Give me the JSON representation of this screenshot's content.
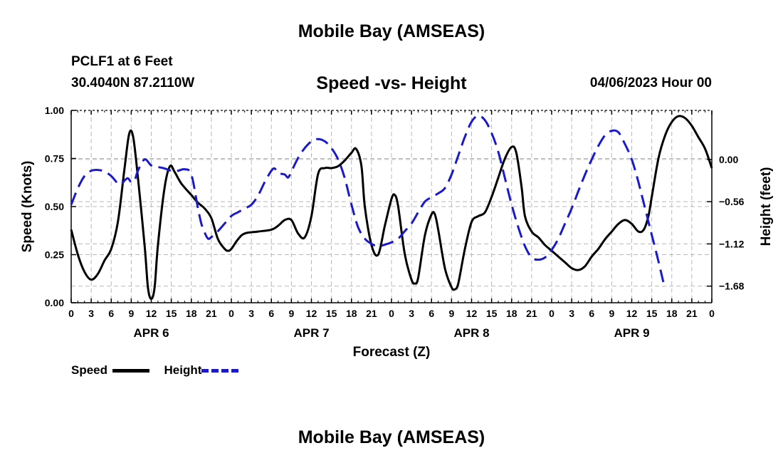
{
  "page": {
    "title": "Mobile Bay (AMSEAS)",
    "station": "PCLF1 at 6 Feet",
    "coords": "30.4040N  87.2110W",
    "datetime": "04/06/2023 Hour 00",
    "next_title": "Mobile Bay (AMSEAS)"
  },
  "chart_data": {
    "type": "line",
    "title": "Speed -vs- Height",
    "xlabel": "Forecast (Z)",
    "ylabel_left": "Speed (Knots)",
    "ylabel_right": "Height (feet)",
    "x_unit": "forecast hour",
    "xlim": [
      0,
      96
    ],
    "x_ticks": [
      0,
      3,
      6,
      9,
      12,
      15,
      18,
      21,
      24,
      27,
      30,
      33,
      36,
      39,
      42,
      45,
      48,
      51,
      54,
      57,
      60,
      63,
      66,
      69,
      72,
      75,
      78,
      81,
      84,
      87,
      90,
      93,
      96
    ],
    "x_tick_labels": [
      "0",
      "3",
      "6",
      "9",
      "12",
      "15",
      "18",
      "21",
      "0",
      "3",
      "6",
      "9",
      "12",
      "15",
      "18",
      "21",
      "0",
      "3",
      "6",
      "9",
      "12",
      "15",
      "18",
      "21",
      "0",
      "3",
      "6",
      "9",
      "12",
      "15",
      "18",
      "21",
      "0"
    ],
    "day_labels": [
      {
        "label": "APR 6",
        "hour": 12
      },
      {
        "label": "APR 7",
        "hour": 36
      },
      {
        "label": "APR 8",
        "hour": 60
      },
      {
        "label": "APR 9",
        "hour": 84
      }
    ],
    "y_left": {
      "lim": [
        0,
        1
      ],
      "ticks": [
        0,
        0.25,
        0.5,
        0.75,
        1.0
      ],
      "tick_labels": [
        "0.00",
        "0.25",
        "0.50",
        "0.75",
        "1.00"
      ]
    },
    "y_right": {
      "lim": [
        -1.9,
        0.65
      ],
      "ticks": [
        0.0,
        -0.56,
        -1.12,
        -1.68
      ],
      "tick_labels": [
        "0.00",
        "−0.56",
        "−1.12",
        "−1.68"
      ]
    },
    "grid": true,
    "legend_position": "bottom-left",
    "series": [
      {
        "name": "Speed",
        "axis": "left",
        "color": "#000000",
        "style": "solid",
        "points": [
          [
            0,
            0.38
          ],
          [
            1,
            0.25
          ],
          [
            2,
            0.16
          ],
          [
            3,
            0.12
          ],
          [
            4,
            0.15
          ],
          [
            5,
            0.22
          ],
          [
            6,
            0.28
          ],
          [
            7,
            0.42
          ],
          [
            8,
            0.7
          ],
          [
            8.7,
            0.88
          ],
          [
            9.3,
            0.86
          ],
          [
            10,
            0.65
          ],
          [
            11,
            0.3
          ],
          [
            11.5,
            0.08
          ],
          [
            12,
            0.02
          ],
          [
            12.5,
            0.08
          ],
          [
            13,
            0.3
          ],
          [
            14,
            0.6
          ],
          [
            14.8,
            0.71
          ],
          [
            15.5,
            0.68
          ],
          [
            16.5,
            0.62
          ],
          [
            18,
            0.56
          ],
          [
            19,
            0.52
          ],
          [
            20,
            0.49
          ],
          [
            21,
            0.44
          ],
          [
            22,
            0.33
          ],
          [
            23,
            0.28
          ],
          [
            23.5,
            0.27
          ],
          [
            24,
            0.28
          ],
          [
            25,
            0.33
          ],
          [
            26,
            0.36
          ],
          [
            28,
            0.37
          ],
          [
            30,
            0.38
          ],
          [
            31,
            0.4
          ],
          [
            32,
            0.43
          ],
          [
            33,
            0.43
          ],
          [
            34,
            0.36
          ],
          [
            35,
            0.34
          ],
          [
            36,
            0.45
          ],
          [
            37,
            0.67
          ],
          [
            38,
            0.7
          ],
          [
            39,
            0.7
          ],
          [
            40,
            0.71
          ],
          [
            41,
            0.74
          ],
          [
            42,
            0.78
          ],
          [
            42.7,
            0.8
          ],
          [
            43.5,
            0.71
          ],
          [
            44,
            0.5
          ],
          [
            45,
            0.3
          ],
          [
            46,
            0.25
          ],
          [
            47,
            0.4
          ],
          [
            48,
            0.54
          ],
          [
            48.5,
            0.56
          ],
          [
            49,
            0.5
          ],
          [
            50,
            0.25
          ],
          [
            51,
            0.12
          ],
          [
            51.5,
            0.1
          ],
          [
            52,
            0.13
          ],
          [
            53,
            0.35
          ],
          [
            54,
            0.46
          ],
          [
            54.5,
            0.46
          ],
          [
            55,
            0.38
          ],
          [
            56,
            0.18
          ],
          [
            57,
            0.08
          ],
          [
            57.5,
            0.07
          ],
          [
            58,
            0.1
          ],
          [
            59,
            0.28
          ],
          [
            60,
            0.42
          ],
          [
            61,
            0.45
          ],
          [
            62,
            0.47
          ],
          [
            63,
            0.55
          ],
          [
            64,
            0.65
          ],
          [
            65,
            0.75
          ],
          [
            66,
            0.81
          ],
          [
            66.7,
            0.78
          ],
          [
            67.5,
            0.6
          ],
          [
            68,
            0.45
          ],
          [
            69,
            0.37
          ],
          [
            70,
            0.34
          ],
          [
            71,
            0.3
          ],
          [
            72,
            0.27
          ],
          [
            73,
            0.24
          ],
          [
            74,
            0.21
          ],
          [
            75,
            0.18
          ],
          [
            76,
            0.17
          ],
          [
            77,
            0.19
          ],
          [
            78,
            0.24
          ],
          [
            79,
            0.28
          ],
          [
            80,
            0.33
          ],
          [
            81,
            0.37
          ],
          [
            82,
            0.41
          ],
          [
            83,
            0.43
          ],
          [
            84,
            0.41
          ],
          [
            85,
            0.37
          ],
          [
            85.8,
            0.38
          ],
          [
            86.5,
            0.45
          ],
          [
            87,
            0.55
          ],
          [
            88,
            0.75
          ],
          [
            89,
            0.87
          ],
          [
            90,
            0.94
          ],
          [
            91,
            0.97
          ],
          [
            92,
            0.96
          ],
          [
            93,
            0.92
          ],
          [
            94,
            0.86
          ],
          [
            95,
            0.8
          ],
          [
            96,
            0.7
          ]
        ]
      },
      {
        "name": "Height",
        "axis": "right",
        "color": "#1a1acc",
        "style": "dashed",
        "points": [
          [
            0,
            -0.6
          ],
          [
            1,
            -0.38
          ],
          [
            2,
            -0.22
          ],
          [
            3,
            -0.15
          ],
          [
            4,
            -0.14
          ],
          [
            5,
            -0.16
          ],
          [
            6,
            -0.22
          ],
          [
            7,
            -0.32
          ],
          [
            7.5,
            -0.33
          ],
          [
            8,
            -0.28
          ],
          [
            8.5,
            -0.25
          ],
          [
            9,
            -0.3
          ],
          [
            9.5,
            -0.28
          ],
          [
            10,
            -0.15
          ],
          [
            11,
            0.0
          ],
          [
            12,
            -0.08
          ],
          [
            13,
            -0.1
          ],
          [
            14,
            -0.12
          ],
          [
            15,
            -0.15
          ],
          [
            16,
            -0.15
          ],
          [
            17,
            -0.13
          ],
          [
            18,
            -0.2
          ],
          [
            19,
            -0.65
          ],
          [
            19.5,
            -0.85
          ],
          [
            20,
            -0.97
          ],
          [
            20.5,
            -1.05
          ],
          [
            21,
            -1.03
          ],
          [
            22,
            -0.95
          ],
          [
            23,
            -0.85
          ],
          [
            24,
            -0.75
          ],
          [
            25,
            -0.7
          ],
          [
            26,
            -0.65
          ],
          [
            27,
            -0.6
          ],
          [
            28,
            -0.48
          ],
          [
            29,
            -0.3
          ],
          [
            30,
            -0.15
          ],
          [
            30.5,
            -0.12
          ],
          [
            31,
            -0.18
          ],
          [
            32,
            -0.2
          ],
          [
            32.5,
            -0.24
          ],
          [
            33,
            -0.16
          ],
          [
            34,
            0.02
          ],
          [
            35,
            0.15
          ],
          [
            36,
            0.24
          ],
          [
            37,
            0.27
          ],
          [
            38,
            0.24
          ],
          [
            39,
            0.15
          ],
          [
            40,
            0.0
          ],
          [
            41,
            -0.25
          ],
          [
            42,
            -0.6
          ],
          [
            43,
            -0.9
          ],
          [
            44,
            -1.05
          ],
          [
            45,
            -1.12
          ],
          [
            46,
            -1.15
          ],
          [
            47,
            -1.13
          ],
          [
            48,
            -1.1
          ],
          [
            49,
            -1.05
          ],
          [
            50,
            -0.95
          ],
          [
            51,
            -0.85
          ],
          [
            52,
            -0.7
          ],
          [
            53,
            -0.56
          ],
          [
            54,
            -0.5
          ],
          [
            55,
            -0.45
          ],
          [
            56,
            -0.38
          ],
          [
            57,
            -0.2
          ],
          [
            58,
            0.05
          ],
          [
            59,
            0.3
          ],
          [
            60,
            0.5
          ],
          [
            61,
            0.58
          ],
          [
            62,
            0.52
          ],
          [
            63,
            0.35
          ],
          [
            64,
            0.1
          ],
          [
            65,
            -0.25
          ],
          [
            66,
            -0.6
          ],
          [
            67,
            -0.9
          ],
          [
            68,
            -1.15
          ],
          [
            69,
            -1.3
          ],
          [
            70,
            -1.33
          ],
          [
            71,
            -1.3
          ],
          [
            72,
            -1.2
          ],
          [
            73,
            -1.05
          ],
          [
            74,
            -0.85
          ],
          [
            75,
            -0.65
          ],
          [
            76,
            -0.42
          ],
          [
            77,
            -0.2
          ],
          [
            78,
            0.0
          ],
          [
            79,
            0.18
          ],
          [
            80,
            0.32
          ],
          [
            81,
            0.38
          ],
          [
            82,
            0.36
          ],
          [
            83,
            0.2
          ],
          [
            84,
            0.0
          ],
          [
            85,
            -0.3
          ],
          [
            86,
            -0.65
          ],
          [
            87,
            -1.0
          ],
          [
            88,
            -1.35
          ],
          [
            88.8,
            -1.65
          ]
        ]
      }
    ]
  },
  "legend": {
    "speed_label": "Speed",
    "height_label": "Height",
    "speed_color": "#000000",
    "height_color": "#1a1acc"
  }
}
